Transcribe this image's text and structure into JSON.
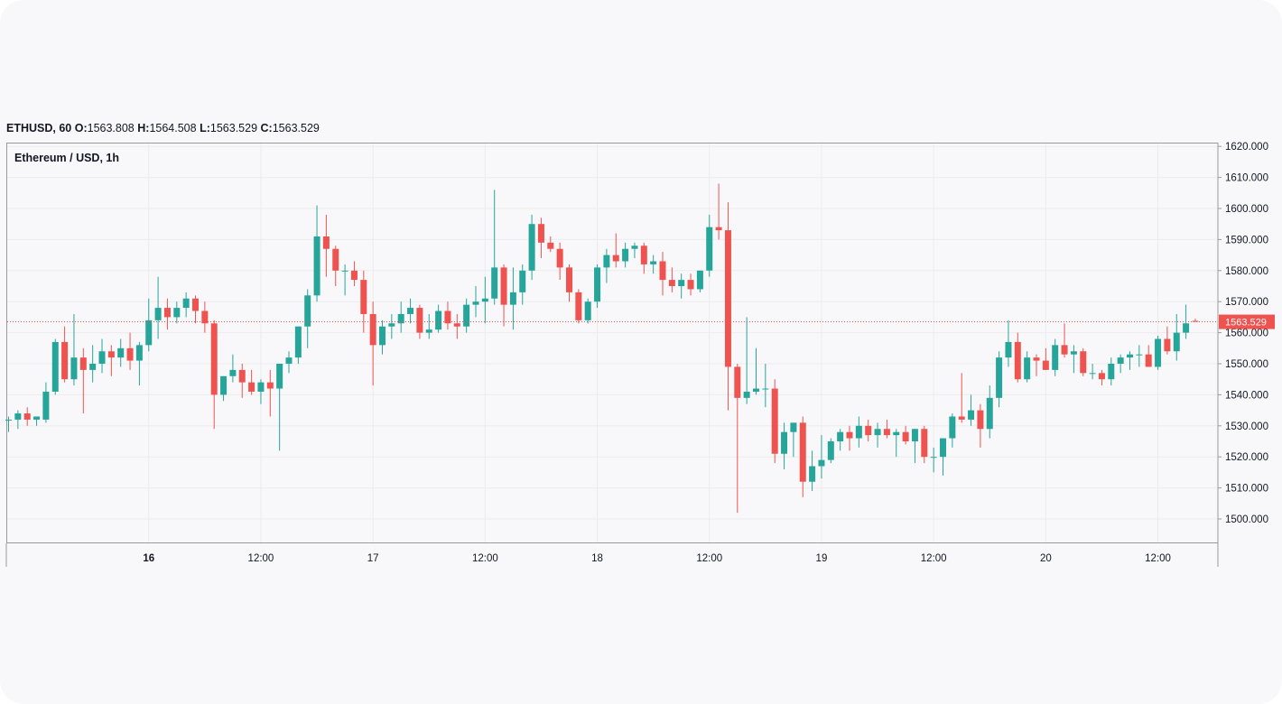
{
  "header": {
    "symbol": "ETHUSD, 60",
    "o_label": "O:",
    "o_value": "1563.808",
    "h_label": "H:",
    "h_value": "1564.508",
    "l_label": "L:",
    "l_value": "1563.529",
    "c_label": "C:",
    "c_value": "1563.529"
  },
  "chart_data": {
    "type": "candlestick",
    "title": "Ethereum / USD, 1h",
    "ylim": [
      1493,
      1621
    ],
    "y_ticks": [
      "1620.000",
      "1610.000",
      "1600.000",
      "1590.000",
      "1580.000",
      "1570.000",
      "1560.000",
      "1550.000",
      "1540.000",
      "1530.000",
      "1520.000",
      "1510.000",
      "1500.000"
    ],
    "x_ticks": [
      {
        "label": "16",
        "hour": 15,
        "bold": true
      },
      {
        "label": "12:00",
        "hour": 27,
        "bold": false
      },
      {
        "label": "17",
        "hour": 39,
        "bold": false
      },
      {
        "label": "12:00",
        "hour": 51,
        "bold": false
      },
      {
        "label": "18",
        "hour": 63,
        "bold": false
      },
      {
        "label": "12:00",
        "hour": 75,
        "bold": false
      },
      {
        "label": "19",
        "hour": 87,
        "bold": false
      },
      {
        "label": "12:00",
        "hour": 99,
        "bold": false
      },
      {
        "label": "20",
        "hour": 111,
        "bold": false
      },
      {
        "label": "12:00",
        "hour": 123,
        "bold": false
      }
    ],
    "last_price": "1563.529",
    "last_price_value": 1563.5,
    "colors": {
      "up": "#26a69a",
      "down": "#ef5350",
      "grid": "#ececec",
      "axis": "#9a9a9a"
    },
    "candles": [
      [
        1532,
        1533,
        1528,
        1532
      ],
      [
        1532,
        1535,
        1529,
        1534
      ],
      [
        1534,
        1536,
        1530,
        1532
      ],
      [
        1532,
        1533,
        1530,
        1533
      ],
      [
        1532,
        1544,
        1531,
        1541
      ],
      [
        1541,
        1558,
        1540,
        1557
      ],
      [
        1557,
        1562,
        1544,
        1545
      ],
      [
        1545,
        1566,
        1543,
        1552
      ],
      [
        1552,
        1555,
        1534,
        1548
      ],
      [
        1548,
        1556,
        1544,
        1550
      ],
      [
        1550,
        1558,
        1547,
        1554
      ],
      [
        1554,
        1556,
        1546,
        1552
      ],
      [
        1552,
        1558,
        1549,
        1555
      ],
      [
        1555,
        1560,
        1548,
        1551
      ],
      [
        1551,
        1557,
        1543,
        1556
      ],
      [
        1556,
        1571,
        1554,
        1564
      ],
      [
        1564,
        1578,
        1558,
        1568
      ],
      [
        1568,
        1571,
        1561,
        1565
      ],
      [
        1565,
        1570,
        1563,
        1568
      ],
      [
        1568,
        1573,
        1565,
        1571
      ],
      [
        1571,
        1572,
        1563,
        1567
      ],
      [
        1567,
        1570,
        1560,
        1563
      ],
      [
        1563,
        1564,
        1529,
        1540
      ],
      [
        1540,
        1546,
        1538,
        1546
      ],
      [
        1546,
        1553,
        1544,
        1548
      ],
      [
        1548,
        1550,
        1539,
        1544
      ],
      [
        1544,
        1548,
        1540,
        1541
      ],
      [
        1541,
        1545,
        1537,
        1544
      ],
      [
        1544,
        1548,
        1533,
        1542
      ],
      [
        1542,
        1550,
        1522,
        1550
      ],
      [
        1550,
        1554,
        1547,
        1552
      ],
      [
        1552,
        1562,
        1550,
        1562
      ],
      [
        1562,
        1574,
        1555,
        1572
      ],
      [
        1572,
        1601,
        1570,
        1591
      ],
      [
        1591,
        1598,
        1578,
        1587
      ],
      [
        1587,
        1588,
        1575,
        1580
      ],
      [
        1580,
        1582,
        1572,
        1580
      ],
      [
        1580,
        1583,
        1575,
        1577
      ],
      [
        1577,
        1580,
        1560,
        1566
      ],
      [
        1566,
        1570,
        1543,
        1556
      ],
      [
        1556,
        1564,
        1553,
        1562
      ],
      [
        1562,
        1566,
        1558,
        1563
      ],
      [
        1563,
        1570,
        1560,
        1566
      ],
      [
        1566,
        1571,
        1563,
        1568
      ],
      [
        1568,
        1569,
        1558,
        1560
      ],
      [
        1560,
        1566,
        1558,
        1561
      ],
      [
        1561,
        1569,
        1560,
        1567
      ],
      [
        1567,
        1570,
        1561,
        1563
      ],
      [
        1563,
        1566,
        1558,
        1562
      ],
      [
        1562,
        1571,
        1560,
        1569
      ],
      [
        1569,
        1575,
        1565,
        1570
      ],
      [
        1570,
        1578,
        1563,
        1571
      ],
      [
        1571,
        1606,
        1569,
        1581
      ],
      [
        1581,
        1582,
        1562,
        1569
      ],
      [
        1569,
        1581,
        1561,
        1573
      ],
      [
        1573,
        1582,
        1569,
        1580
      ],
      [
        1580,
        1598,
        1577,
        1595
      ],
      [
        1595,
        1597,
        1584,
        1589
      ],
      [
        1589,
        1591,
        1586,
        1587
      ],
      [
        1587,
        1589,
        1577,
        1581
      ],
      [
        1581,
        1582,
        1570,
        1573
      ],
      [
        1573,
        1574,
        1563,
        1564
      ],
      [
        1564,
        1571,
        1563,
        1570
      ],
      [
        1570,
        1582,
        1568,
        1581
      ],
      [
        1581,
        1587,
        1576,
        1585
      ],
      [
        1585,
        1592,
        1581,
        1583
      ],
      [
        1583,
        1589,
        1581,
        1587
      ],
      [
        1587,
        1589,
        1584,
        1588
      ],
      [
        1588,
        1589,
        1579,
        1582
      ],
      [
        1582,
        1585,
        1579,
        1583
      ],
      [
        1583,
        1586,
        1572,
        1577
      ],
      [
        1577,
        1581,
        1573,
        1575
      ],
      [
        1575,
        1579,
        1571,
        1577
      ],
      [
        1577,
        1579,
        1572,
        1574
      ],
      [
        1574,
        1580,
        1573,
        1580
      ],
      [
        1580,
        1598,
        1578,
        1594
      ],
      [
        1594,
        1608,
        1590,
        1593
      ],
      [
        1593,
        1602,
        1535,
        1549
      ],
      [
        1549,
        1550,
        1502,
        1539
      ],
      [
        1539,
        1565,
        1537,
        1541
      ],
      [
        1541,
        1555,
        1540,
        1542
      ],
      [
        1542,
        1550,
        1536,
        1542
      ],
      [
        1542,
        1545,
        1518,
        1521
      ],
      [
        1521,
        1531,
        1516,
        1528
      ],
      [
        1528,
        1531,
        1520,
        1531
      ],
      [
        1531,
        1533,
        1507,
        1512
      ],
      [
        1512,
        1522,
        1509,
        1517
      ],
      [
        1517,
        1527,
        1513,
        1519
      ],
      [
        1519,
        1526,
        1518,
        1525
      ],
      [
        1525,
        1529,
        1522,
        1528
      ],
      [
        1528,
        1530,
        1522,
        1526
      ],
      [
        1526,
        1533,
        1523,
        1530
      ],
      [
        1530,
        1532,
        1525,
        1527
      ],
      [
        1527,
        1531,
        1523,
        1529
      ],
      [
        1529,
        1532,
        1526,
        1527
      ],
      [
        1527,
        1529,
        1520,
        1528
      ],
      [
        1528,
        1530,
        1524,
        1525
      ],
      [
        1525,
        1529,
        1518,
        1529
      ],
      [
        1529,
        1530,
        1518,
        1520
      ],
      [
        1520,
        1523,
        1515,
        1520
      ],
      [
        1520,
        1526,
        1514,
        1526
      ],
      [
        1526,
        1534,
        1523,
        1533
      ],
      [
        1533,
        1547,
        1531,
        1532
      ],
      [
        1532,
        1540,
        1530,
        1535
      ],
      [
        1535,
        1537,
        1523,
        1529
      ],
      [
        1529,
        1543,
        1526,
        1539
      ],
      [
        1539,
        1554,
        1536,
        1552
      ],
      [
        1552,
        1564,
        1549,
        1557
      ],
      [
        1557,
        1560,
        1544,
        1545
      ],
      [
        1545,
        1554,
        1544,
        1552
      ],
      [
        1552,
        1553,
        1546,
        1551
      ],
      [
        1551,
        1555,
        1548,
        1548
      ],
      [
        1548,
        1558,
        1546,
        1556
      ],
      [
        1556,
        1563,
        1552,
        1553
      ],
      [
        1553,
        1556,
        1547,
        1554
      ],
      [
        1554,
        1555,
        1546,
        1547
      ],
      [
        1547,
        1550,
        1545,
        1547
      ],
      [
        1547,
        1548,
        1543,
        1545
      ],
      [
        1545,
        1552,
        1543,
        1550
      ],
      [
        1550,
        1553,
        1547,
        1552
      ],
      [
        1552,
        1554,
        1548,
        1553
      ],
      [
        1553,
        1556,
        1549,
        1553
      ],
      [
        1553,
        1556,
        1549,
        1549
      ],
      [
        1549,
        1559,
        1548,
        1558
      ],
      [
        1558,
        1562,
        1553,
        1554
      ],
      [
        1554,
        1566,
        1551,
        1560
      ],
      [
        1560,
        1569,
        1558,
        1563
      ],
      [
        1563.808,
        1564.508,
        1563.529,
        1563.529
      ]
    ]
  }
}
